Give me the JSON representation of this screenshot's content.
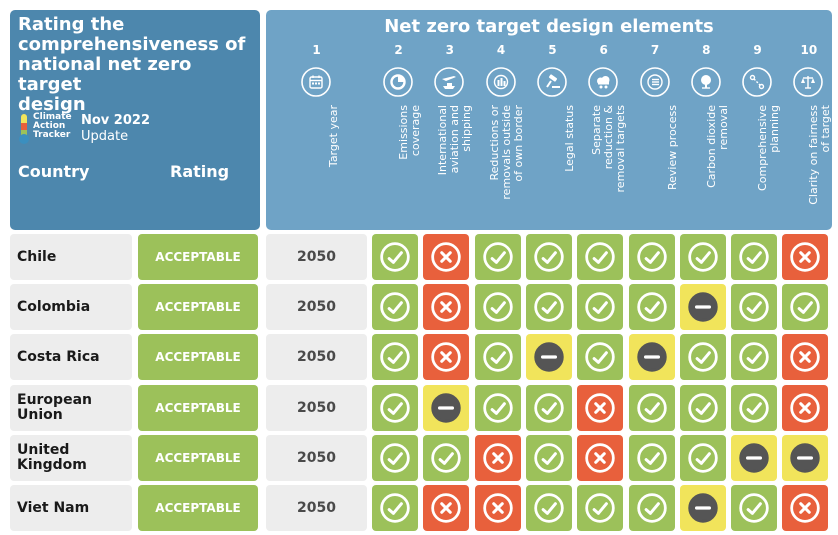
{
  "header": {
    "title_lines": [
      "Rating the",
      "comprehensiveness of",
      "national net zero target",
      "design"
    ],
    "logo": {
      "lines": [
        "Climate",
        "Action",
        "Tracker"
      ],
      "icon": "thermometer-logo-icon"
    },
    "update_date": "Nov 2022",
    "update_word": "Update",
    "country_label": "Country",
    "rating_label": "Rating"
  },
  "elements": {
    "title": "Net zero target design elements",
    "columns": [
      {
        "num": "1",
        "label_lines": [
          "Target year"
        ],
        "icon": "calendar-icon"
      },
      {
        "num": "2",
        "label_lines": [
          "Emissions",
          "coverage"
        ],
        "icon": "pie-chart-icon"
      },
      {
        "num": "3",
        "label_lines": [
          "International",
          "aviation and",
          "shipping"
        ],
        "icon": "plane-ship-icon"
      },
      {
        "num": "4",
        "label_lines": [
          "Reductions or",
          "removals outside",
          "of own border"
        ],
        "icon": "globe-bars-icon"
      },
      {
        "num": "5",
        "label_lines": [
          "Legal status"
        ],
        "icon": "gavel-icon"
      },
      {
        "num": "6",
        "label_lines": [
          "Separate",
          "reduction &",
          "removal targets"
        ],
        "icon": "cloud-split-icon"
      },
      {
        "num": "7",
        "label_lines": [
          "Review process"
        ],
        "icon": "checklist-icon"
      },
      {
        "num": "8",
        "label_lines": [
          "Carbon dioxide",
          "removal"
        ],
        "icon": "tree-cloud-icon"
      },
      {
        "num": "9",
        "label_lines": [
          "Comprehensive",
          "planning"
        ],
        "icon": "route-icon"
      },
      {
        "num": "10",
        "label_lines": [
          "Clarity on fairness",
          "of target"
        ],
        "icon": "scales-icon"
      }
    ]
  },
  "statuses": {
    "check": {
      "color": "#9cc15a",
      "icon": "check-circle-icon"
    },
    "cross": {
      "color": "#e8603c",
      "icon": "cross-circle-icon"
    },
    "dash": {
      "color": "#f1e45b",
      "icon": "minus-circle-icon"
    }
  },
  "rows": [
    {
      "country_lines": [
        "Chile"
      ],
      "rating": "ACCEPTABLE",
      "year": "2050",
      "statuses": [
        "check",
        "cross",
        "check",
        "check",
        "check",
        "check",
        "check",
        "check",
        "cross"
      ]
    },
    {
      "country_lines": [
        "Colombia"
      ],
      "rating": "ACCEPTABLE",
      "year": "2050",
      "statuses": [
        "check",
        "cross",
        "check",
        "check",
        "check",
        "check",
        "dash",
        "check",
        "check"
      ]
    },
    {
      "country_lines": [
        "Costa Rica"
      ],
      "rating": "ACCEPTABLE",
      "year": "2050",
      "statuses": [
        "check",
        "cross",
        "check",
        "dash",
        "check",
        "dash",
        "check",
        "check",
        "cross"
      ]
    },
    {
      "country_lines": [
        "European",
        "Union"
      ],
      "rating": "ACCEPTABLE",
      "year": "2050",
      "statuses": [
        "check",
        "dash",
        "check",
        "check",
        "cross",
        "check",
        "check",
        "check",
        "cross"
      ]
    },
    {
      "country_lines": [
        "United",
        "Kingdom"
      ],
      "rating": "ACCEPTABLE",
      "year": "2050",
      "statuses": [
        "check",
        "check",
        "cross",
        "check",
        "cross",
        "check",
        "check",
        "dash",
        "dash"
      ]
    },
    {
      "country_lines": [
        "Viet Nam"
      ],
      "rating": "ACCEPTABLE",
      "year": "2050",
      "statuses": [
        "check",
        "cross",
        "cross",
        "check",
        "check",
        "check",
        "dash",
        "check",
        "cross"
      ]
    }
  ]
}
